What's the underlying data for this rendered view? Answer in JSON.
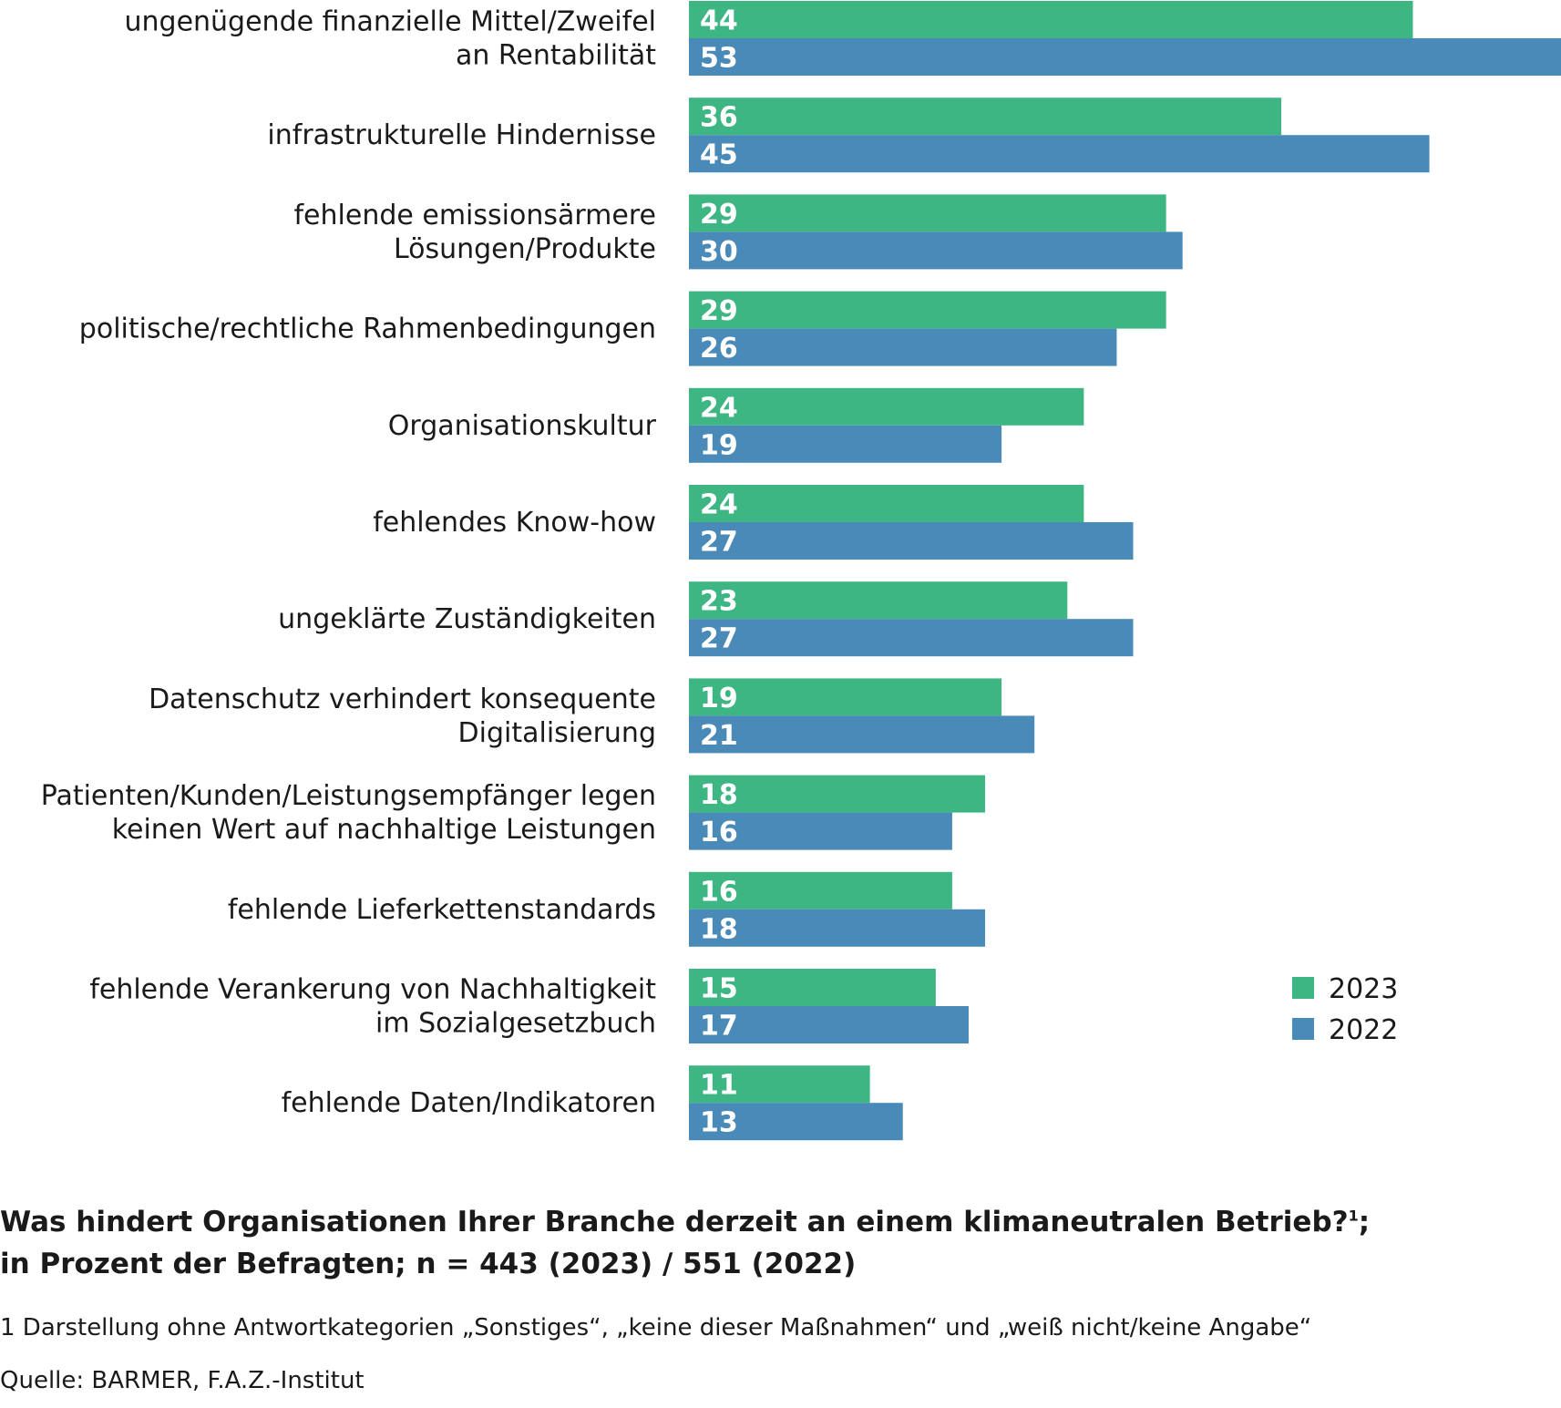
{
  "chart_data": {
    "type": "bar",
    "orientation": "horizontal",
    "categories": [
      [
        "ungenügende finanzielle Mittel/Zweifel",
        "an Rentabilität"
      ],
      [
        "infrastrukturelle Hindernisse"
      ],
      [
        "fehlende emissionsärmere",
        "Lösungen/Produkte"
      ],
      [
        "politische/rechtliche Rahmenbedingungen"
      ],
      [
        "Organisationskultur"
      ],
      [
        "fehlendes Know-how"
      ],
      [
        "ungeklärte Zuständigkeiten"
      ],
      [
        "Datenschutz verhindert konsequente",
        "Digitalisierung"
      ],
      [
        "Patienten/Kunden/Leistungsempfänger legen",
        "keinen Wert auf nachhaltige Leistungen"
      ],
      [
        "fehlende Lieferkettenstandards"
      ],
      [
        "fehlende Verankerung von Nachhaltigkeit",
        "im Sozialgesetzbuch"
      ],
      [
        "fehlende Daten/Indikatoren"
      ]
    ],
    "series": [
      {
        "name": "2023",
        "color": "#3db683",
        "values": [
          44,
          36,
          29,
          29,
          24,
          24,
          23,
          19,
          18,
          16,
          15,
          11
        ]
      },
      {
        "name": "2022",
        "color": "#4a8ab8",
        "values": [
          53,
          45,
          30,
          26,
          19,
          27,
          27,
          21,
          16,
          18,
          17,
          13
        ]
      }
    ],
    "xlim": [
      0,
      53
    ],
    "grid": false,
    "legend_position": "bottom-right",
    "data_labels": true
  },
  "question": {
    "line1": "Was hindert Organisationen Ihrer Branche derzeit an einem klimaneutralen Betrieb?",
    "footnote_mark": "1",
    "line1_suffix": ";",
    "line2": "in Prozent der Befragten; n = 443 (2023) / 551 (2022)"
  },
  "footnote": "1  Darstellung ohne Antwortkategorien „Sonstiges“, „keine dieser Maßnahmen“ und „weiß nicht/keine Angabe“",
  "source": "Quelle: BARMER, F.A.Z.-Institut"
}
